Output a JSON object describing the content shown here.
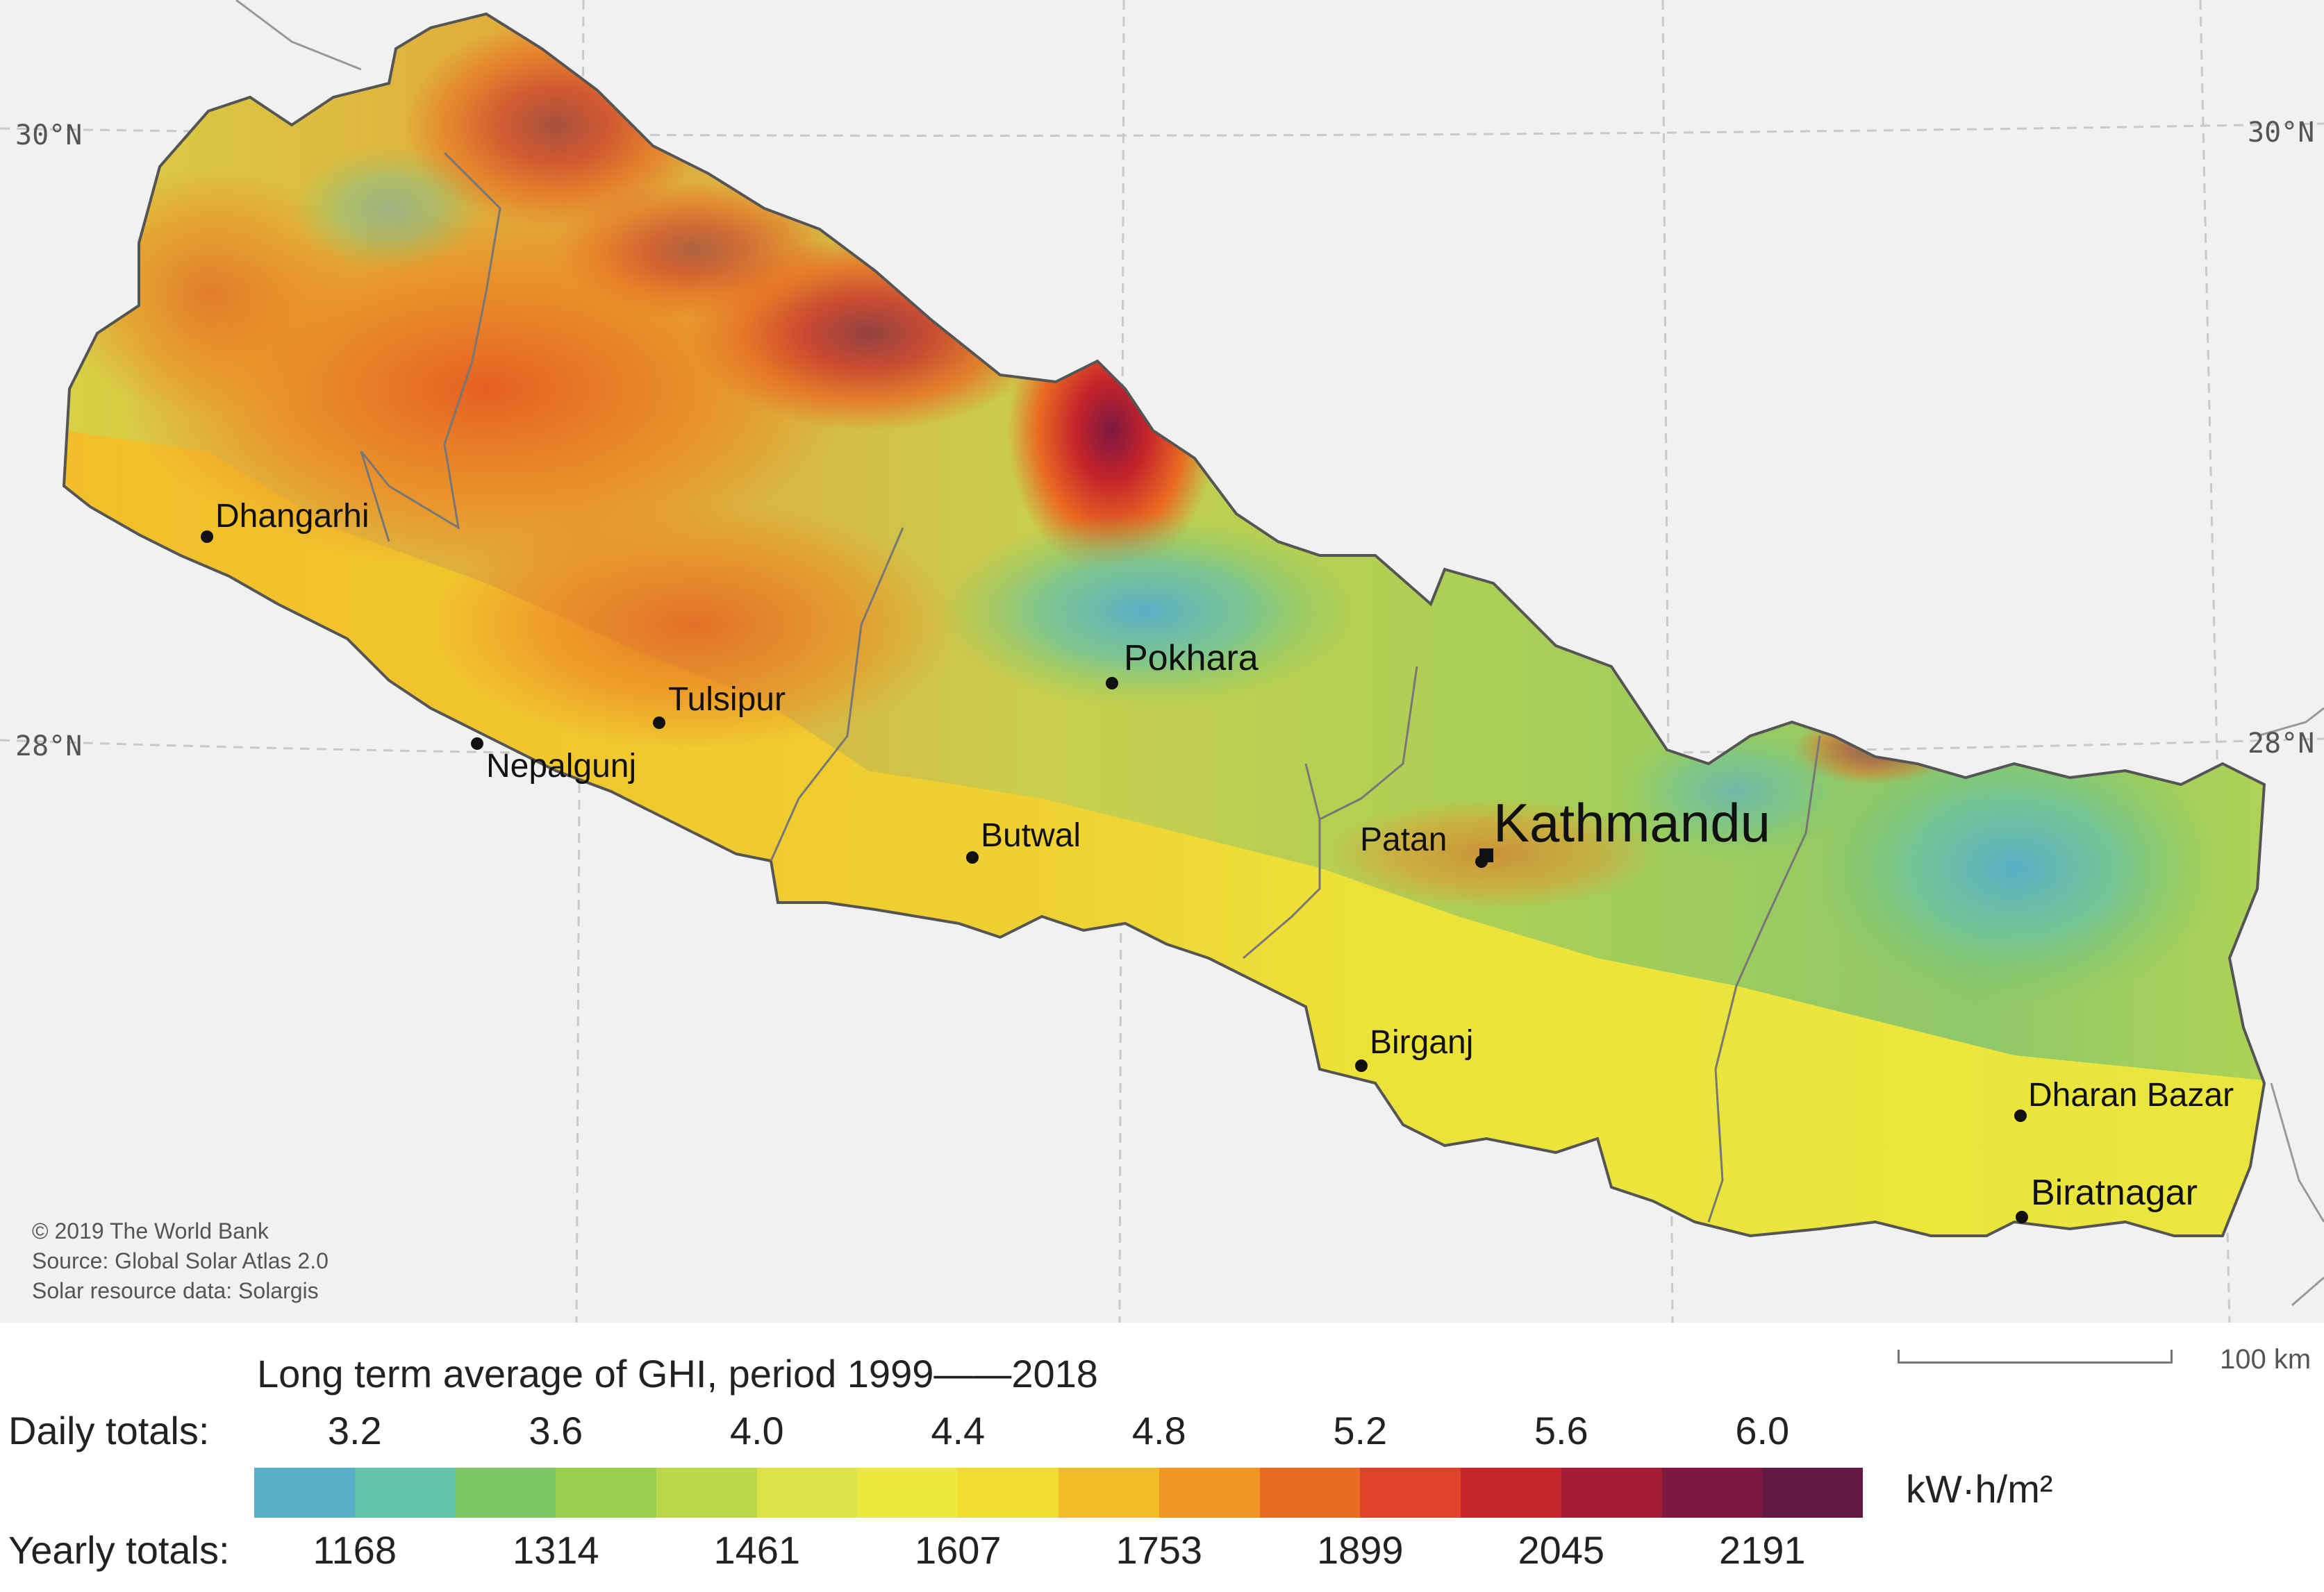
{
  "map": {
    "lat_labels": {
      "north": "30°N",
      "south": "28°N"
    },
    "cities": [
      {
        "name": "Dhangarhi",
        "style": "normal"
      },
      {
        "name": "Pokhara",
        "style": "mid"
      },
      {
        "name": "Tulsipur",
        "style": "normal"
      },
      {
        "name": "Nepalgunj",
        "style": "normal"
      },
      {
        "name": "Butwal",
        "style": "normal"
      },
      {
        "name": "Patan",
        "style": "normal"
      },
      {
        "name": "Kathmandu",
        "style": "big"
      },
      {
        "name": "Birganj",
        "style": "normal"
      },
      {
        "name": "Dharan Bazar",
        "style": "normal"
      },
      {
        "name": "Biratnagar",
        "style": "mid"
      }
    ],
    "credits": [
      "© 2019 The World Bank",
      "Source: Global Solar Atlas 2.0",
      "Solar resource data: Solargis"
    ],
    "scale": {
      "label": "100 km",
      "distance_km": 100
    }
  },
  "legend": {
    "title": "Long term average of GHI, period 1999——2018",
    "daily_label": "Daily totals:",
    "yearly_label": "Yearly totals:",
    "daily_ticks": [
      "3.2",
      "3.6",
      "4.0",
      "4.4",
      "4.8",
      "5.2",
      "5.6",
      "6.0"
    ],
    "yearly_ticks": [
      "1168",
      "1314",
      "1461",
      "1607",
      "1753",
      "1899",
      "2045",
      "2191"
    ],
    "unit": "kW·h/m²",
    "colors": [
      "#5aafc8",
      "#63c4a7",
      "#7cc762",
      "#98d04d",
      "#bbd84c",
      "#dce44a",
      "#eee83e",
      "#f0dd2f",
      "#f3bb27",
      "#ef9624",
      "#e96a22",
      "#df4227",
      "#c6242b",
      "#a41c34",
      "#7d1740",
      "#651744"
    ]
  }
}
